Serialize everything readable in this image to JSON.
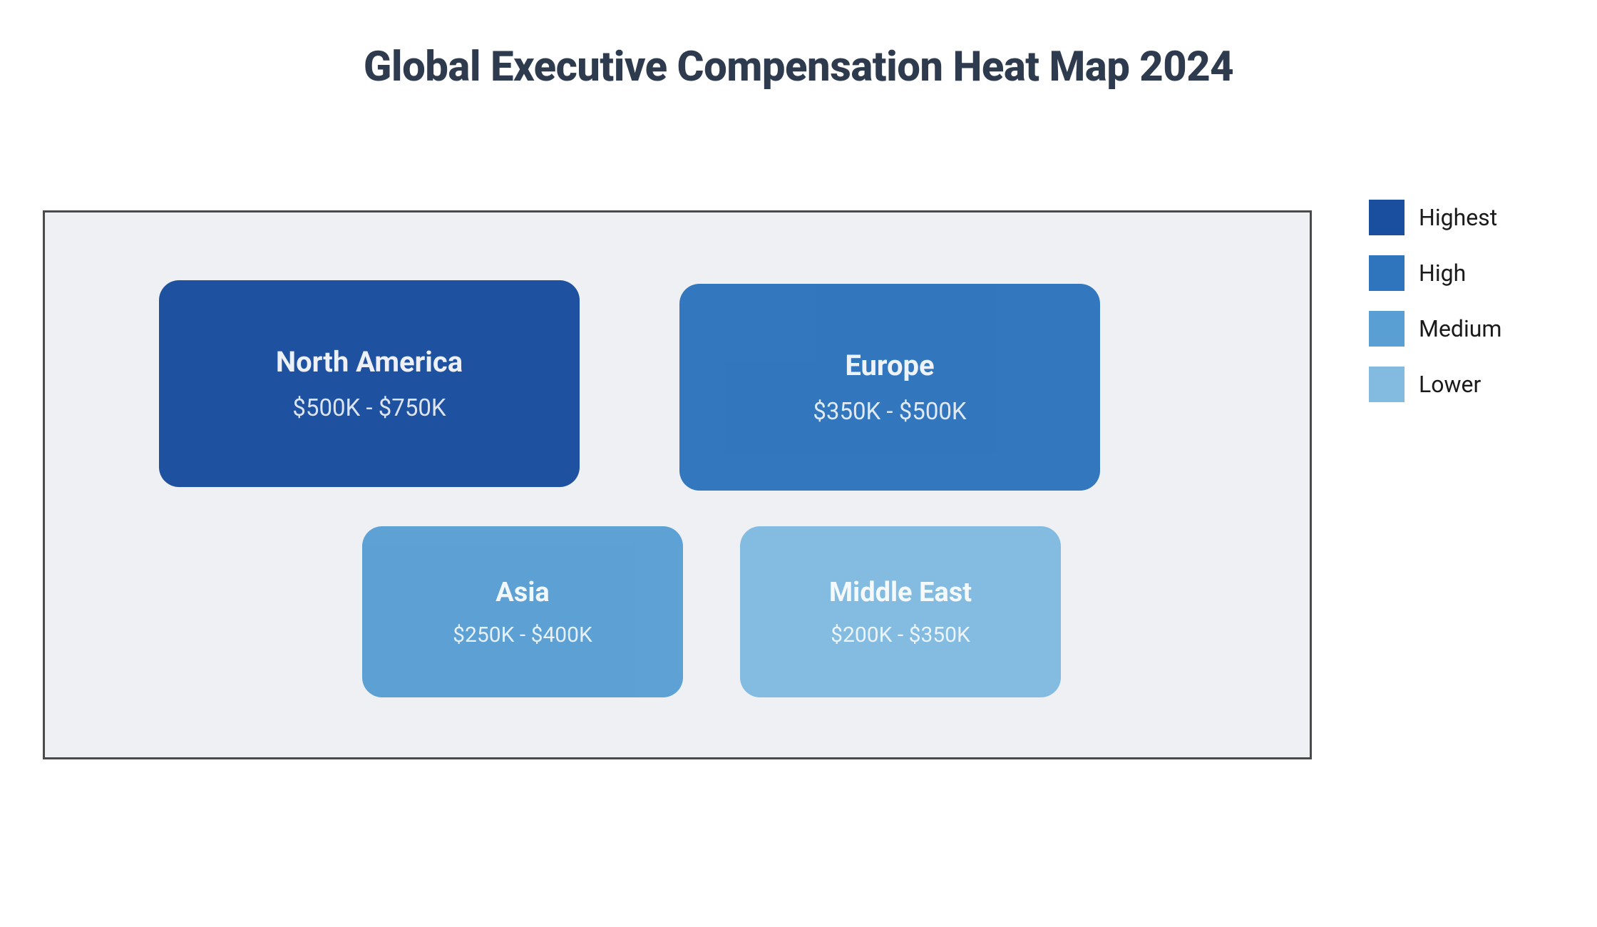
{
  "title": "Global Executive Compensation Heat Map 2024",
  "title_color": "#2e3b4e",
  "title_fontsize": 58,
  "background_color": "#ffffff",
  "container": {
    "background_color": "#eef0f3",
    "border_color": "#4a4a4a",
    "border_width": 3
  },
  "cards": {
    "north_america": {
      "label": "North America",
      "value": "$500K - $750K",
      "color": "#1a4e9e",
      "level": "highest",
      "border_radius": 28
    },
    "europe": {
      "label": "Europe",
      "value": "$350K - $500K",
      "color": "#2f75bd",
      "level": "high",
      "border_radius": 28
    },
    "asia": {
      "label": "Asia",
      "value": "$250K - $400K",
      "color": "#5a9fd4",
      "level": "medium",
      "border_radius": 28
    },
    "middle_east": {
      "label": "Middle East",
      "value": "$200K - $350K",
      "color": "#82bae0",
      "level": "lower",
      "border_radius": 28
    }
  },
  "legend": {
    "items": [
      {
        "label": "Highest",
        "color": "#1a4e9e"
      },
      {
        "label": "High",
        "color": "#2f75bd"
      },
      {
        "label": "Medium",
        "color": "#5a9fd4"
      },
      {
        "label": "Lower",
        "color": "#82bae0"
      }
    ],
    "swatch_size": 50,
    "label_fontsize": 32,
    "label_color": "#1a1a1a"
  },
  "card_text": {
    "title_color": "rgba(255,255,255,0.92)",
    "value_color": "rgba(255,255,255,0.85)"
  }
}
